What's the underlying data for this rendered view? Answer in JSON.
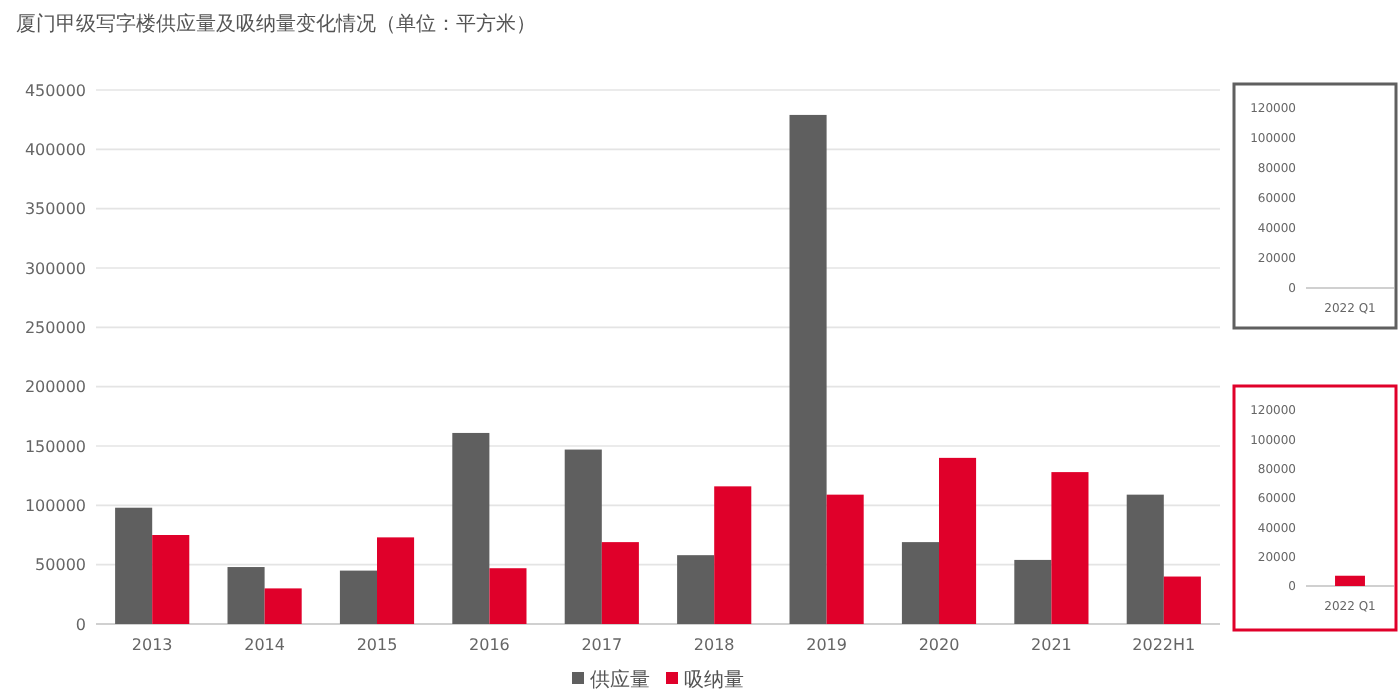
{
  "chart_data": [
    {
      "type": "bar",
      "title": "厦门甲级写字楼供应量及吸纳量变化情况（单位：平方米）",
      "categories": [
        "2013",
        "2014",
        "2015",
        "2016",
        "2017",
        "2018",
        "2019",
        "2020",
        "2021",
        "2022H1"
      ],
      "series": [
        {
          "name": "供应量",
          "color": "#5f5f5f",
          "values": [
            98000,
            48000,
            45000,
            161000,
            147000,
            58000,
            429000,
            69000,
            54000,
            109000
          ]
        },
        {
          "name": "吸纳量",
          "color": "#e0002a",
          "values": [
            75000,
            30000,
            73000,
            47000,
            69000,
            116000,
            109000,
            140000,
            128000,
            40000
          ]
        }
      ],
      "ylim": [
        0,
        450000
      ],
      "yticks": [
        0,
        50000,
        100000,
        150000,
        200000,
        250000,
        300000,
        350000,
        400000,
        450000
      ],
      "grid": "y",
      "legend": "bottom"
    },
    {
      "type": "bar",
      "categories": [
        "2022 Q1"
      ],
      "series": [
        {
          "color": "#5f5f5f",
          "values": [
            0
          ]
        }
      ],
      "ylim": [
        0,
        120000
      ],
      "yticks": [
        0,
        20000,
        40000,
        60000,
        80000,
        100000,
        120000
      ]
    },
    {
      "type": "bar",
      "categories": [
        "2022 Q1"
      ],
      "series": [
        {
          "color": "#e0002a",
          "values": [
            7000
          ]
        }
      ],
      "ylim": [
        0,
        120000
      ],
      "yticks": [
        0,
        20000,
        40000,
        60000,
        80000,
        100000,
        120000
      ]
    }
  ]
}
